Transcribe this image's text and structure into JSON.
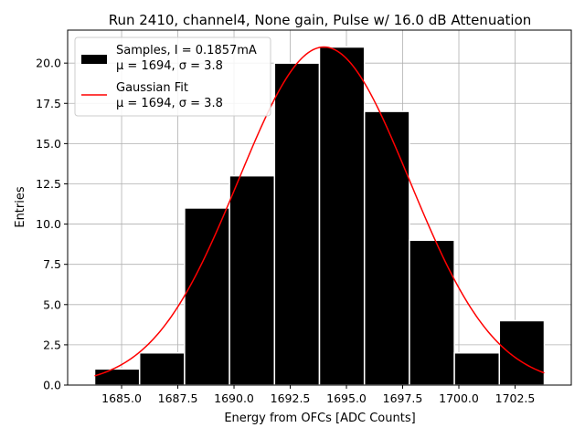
{
  "chart_data": {
    "type": "bar",
    "title": "Run 2410, channel4, None gain, Pulse w/ 16.0 dB Attenuation",
    "xlabel": "Energy from OFCs [ADC Counts]",
    "ylabel": "Entries",
    "xlim": [
      1682.6,
      1705.0
    ],
    "ylim": [
      0,
      22.05
    ],
    "x_ticks": [
      "1685.0",
      "1687.5",
      "1690.0",
      "1692.5",
      "1695.0",
      "1697.5",
      "1700.0",
      "1702.5"
    ],
    "y_ticks": [
      "0.0",
      "2.5",
      "5.0",
      "7.5",
      "10.0",
      "12.5",
      "15.0",
      "17.5",
      "20.0"
    ],
    "grid": true,
    "legend_position": "top-left",
    "bin_edges": [
      1683.8,
      1685.8,
      1687.8,
      1689.8,
      1691.8,
      1693.8,
      1695.8,
      1697.8,
      1699.8,
      1701.8,
      1703.8
    ],
    "series": [
      {
        "name": "Samples, I = 0.1857mA",
        "name_line2": "μ = 1694, σ = 3.8",
        "kind": "histogram",
        "color": "#000000",
        "values": [
          1,
          2,
          11,
          13,
          20,
          21,
          17,
          9,
          2,
          4
        ]
      },
      {
        "name": "Gaussian Fit",
        "name_line2": "μ = 1694, σ = 3.8",
        "kind": "curve",
        "color": "#ff0000",
        "amplitude": 21.0,
        "mean": 1694.0,
        "sigma": 3.8,
        "x_range": [
          1683.8,
          1703.8
        ]
      }
    ]
  }
}
